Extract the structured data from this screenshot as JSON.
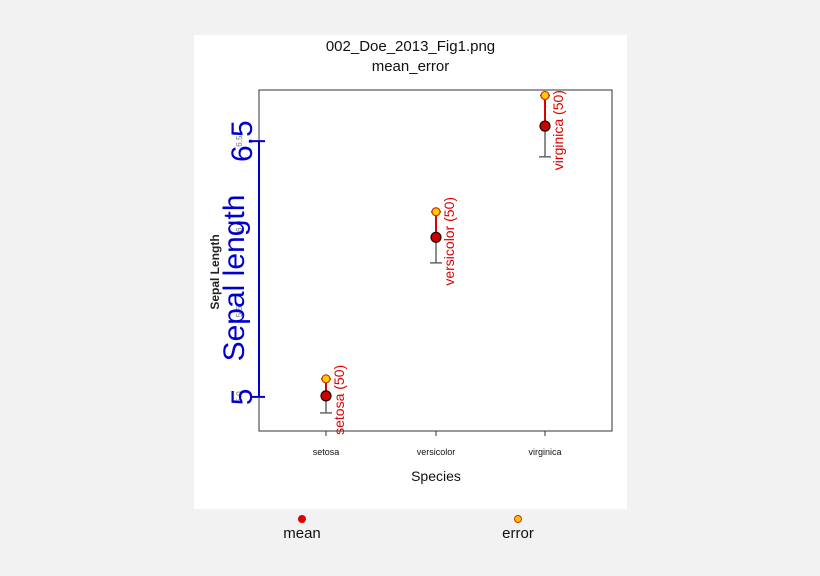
{
  "figure": {
    "title_line1": "002_Doe_2013_Fig1.png",
    "title_line2": "mean_error"
  },
  "chart_data": {
    "type": "scatter",
    "xlabel": "Species",
    "ylabel_small": "Sepal Length",
    "ylabel_large": "Sepal length",
    "categories": [
      "setosa",
      "versicolor",
      "virginica"
    ],
    "ylim": [
      4.8,
      6.8
    ],
    "yticks_small": [
      "5.0",
      "5.5",
      "6.0",
      "6.5"
    ],
    "yticks_large": [
      "5",
      "6.5"
    ],
    "series": [
      {
        "name": "mean",
        "color": "#cc0000",
        "values": [
          5.006,
          5.936,
          6.588
        ]
      },
      {
        "name": "error",
        "color": "#ffaa00",
        "values": [
          5.106,
          6.086,
          6.768
        ]
      }
    ],
    "lower_error": [
      4.906,
      5.786,
      6.408
    ],
    "point_labels": [
      "setosa (50)",
      "versicolor (50)",
      "virginica (50)"
    ],
    "label_color": "#dd0000",
    "overlay_color": "#0000cc",
    "legend_placement": "bottom"
  }
}
